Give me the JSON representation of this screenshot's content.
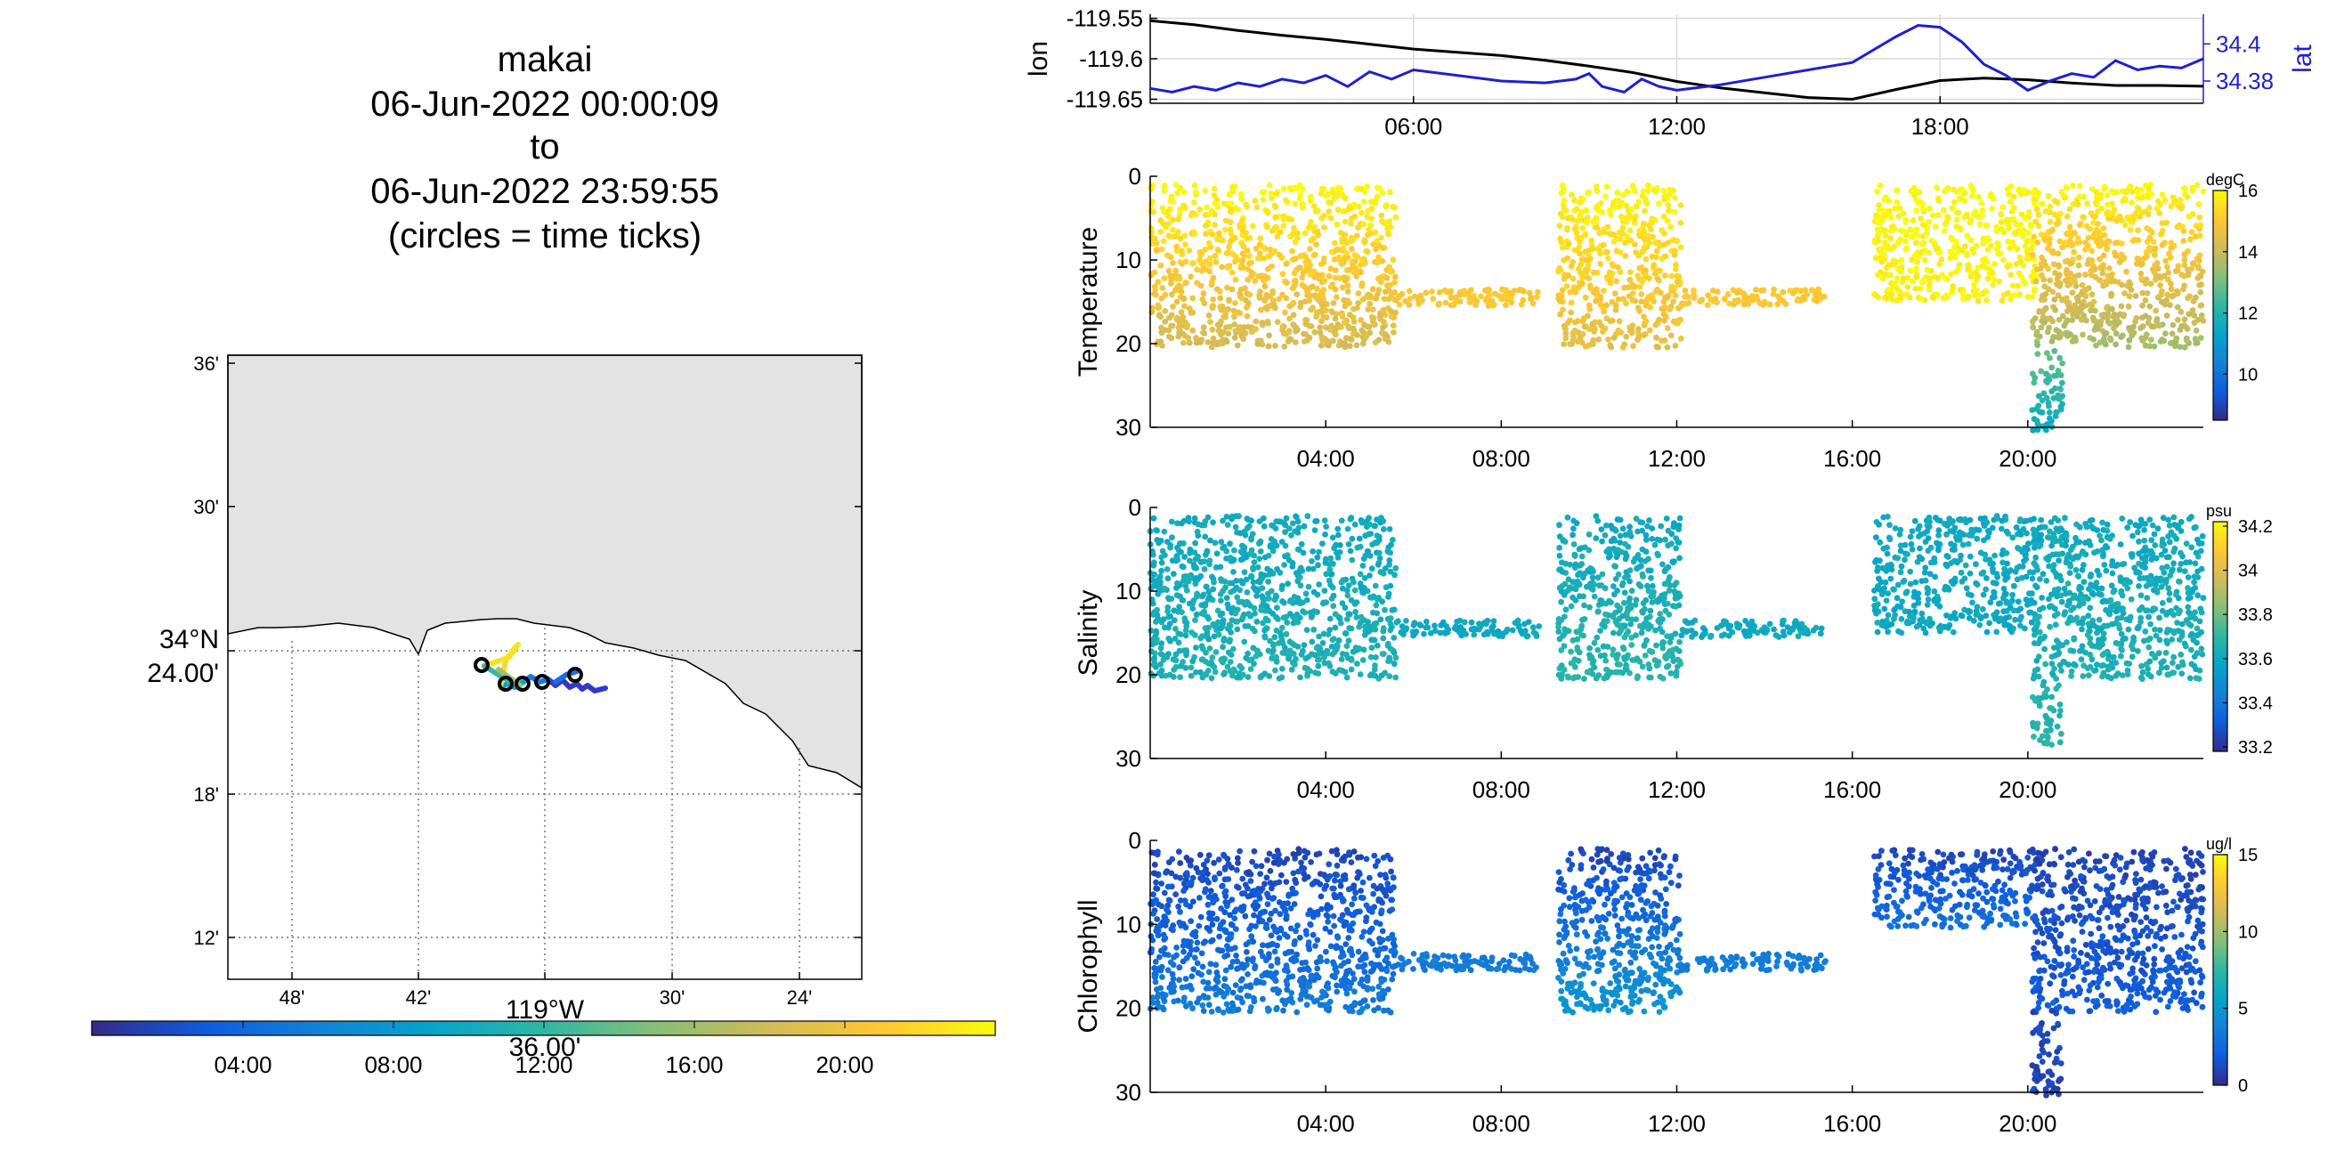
{
  "title": {
    "lines": [
      "makai",
      "06-Jun-2022 00:00:09",
      "to",
      "06-Jun-2022 23:59:55",
      "(circles = time ticks)"
    ]
  },
  "map": {
    "lat_ticks": [
      "36'",
      "30'",
      "34°N",
      "24.00'",
      "18'",
      "12'"
    ],
    "lon_ticks": [
      "48'",
      "42'",
      "119°W",
      "36.00'",
      "30'",
      "24'"
    ],
    "land_color": "#e3e3e3",
    "colorbar_ticks": [
      "04:00",
      "08:00",
      "12:00",
      "16:00",
      "20:00"
    ]
  },
  "colors": {
    "lon_line": "#000000",
    "lat_line": "#1f1fd1",
    "parula": [
      "#352a87",
      "#0f5cdd",
      "#1481d6",
      "#06a4ca",
      "#2eb7a4",
      "#87bf77",
      "#d1bb59",
      "#fec832",
      "#f9fb0e"
    ]
  },
  "chart_data": [
    {
      "type": "line",
      "xlim": [
        "00:00",
        "24:00"
      ],
      "x_ticks": [
        "06:00",
        "12:00",
        "18:00"
      ],
      "left_axis": {
        "label": "lon",
        "ylim": [
          -119.655,
          -119.545
        ],
        "ticks": [
          "-119.55",
          "-119.6",
          "-119.65"
        ]
      },
      "right_axis": {
        "label": "lat",
        "ylim": [
          34.368,
          34.416
        ],
        "ticks": [
          "34.4",
          "34.38"
        ]
      },
      "series": [
        {
          "axis": "left",
          "x_hours": [
            0,
            1,
            2,
            3,
            4,
            5,
            6,
            7,
            8,
            9,
            10,
            11,
            12,
            13,
            14,
            15,
            16,
            17,
            18,
            19,
            20,
            21,
            22,
            23,
            24
          ],
          "values": [
            -119.553,
            -119.558,
            -119.565,
            -119.571,
            -119.576,
            -119.582,
            -119.588,
            -119.592,
            -119.596,
            -119.602,
            -119.609,
            -119.617,
            -119.628,
            -119.636,
            -119.642,
            -119.648,
            -119.65,
            -119.638,
            -119.627,
            -119.624,
            -119.626,
            -119.63,
            -119.633,
            -119.633,
            -119.634
          ]
        },
        {
          "axis": "right",
          "x_hours": [
            0,
            0.5,
            1,
            1.5,
            2,
            2.5,
            3,
            3.5,
            4,
            4.5,
            5,
            5.5,
            6,
            7,
            8,
            9,
            9.7,
            10,
            10.3,
            10.8,
            11.2,
            11.6,
            12,
            13,
            14,
            15,
            16,
            16.5,
            17,
            17.5,
            18,
            18.5,
            19,
            19.5,
            20,
            20.5,
            21,
            21.5,
            22,
            22.5,
            23,
            23.5,
            24
          ],
          "values": [
            34.376,
            34.374,
            34.377,
            34.375,
            34.379,
            34.377,
            34.381,
            34.379,
            34.383,
            34.377,
            34.385,
            34.381,
            34.386,
            34.383,
            34.38,
            34.379,
            34.381,
            34.384,
            34.377,
            34.374,
            34.381,
            34.377,
            34.375,
            34.378,
            34.382,
            34.386,
            34.39,
            34.397,
            34.404,
            34.41,
            34.409,
            34.401,
            34.389,
            34.383,
            34.375,
            34.38,
            34.384,
            34.382,
            34.391,
            34.386,
            34.388,
            34.387,
            34.392
          ]
        }
      ]
    },
    {
      "type": "scatter",
      "ylabel": "Temperature",
      "ylim": [
        0,
        30
      ],
      "y_reversed": true,
      "y_ticks": [
        "0",
        "10",
        "20",
        "30"
      ],
      "x_ticks": [
        "04:00",
        "08:00",
        "12:00",
        "16:00",
        "20:00"
      ],
      "colorbar": {
        "unit": "degC",
        "range": [
          8.5,
          16
        ],
        "ticks": [
          "16",
          "14",
          "12",
          "10"
        ]
      },
      "segments": [
        {
          "t": [
            0,
            5.6
          ],
          "depth": [
            1,
            20.5
          ],
          "kind": "profile",
          "c_top": 16,
          "c_bottom": 14.2
        },
        {
          "t": [
            5.6,
            8.9
          ],
          "depth": [
            13.5,
            15.5
          ],
          "kind": "tow",
          "c": 15
        },
        {
          "t": [
            9.3,
            12.1
          ],
          "depth": [
            1,
            20.5
          ],
          "kind": "profile",
          "c_top": 16,
          "c_bottom": 14.5
        },
        {
          "t": [
            12.1,
            15.4
          ],
          "depth": [
            13.5,
            15.5
          ],
          "kind": "tow",
          "c": 15
        },
        {
          "t": [
            16.5,
            20.2
          ],
          "depth": [
            1,
            15
          ],
          "kind": "profile",
          "c_top": 16,
          "c_bottom": 15.8
        },
        {
          "t": [
            20.1,
            24
          ],
          "depth": [
            1,
            20.5
          ],
          "kind": "profile",
          "c_top": 16,
          "c_bottom": 13.5
        },
        {
          "t": [
            20.1,
            20.8
          ],
          "depth": [
            20,
            30.5
          ],
          "kind": "profile",
          "c_top": 13,
          "c_bottom": 11.5
        }
      ]
    },
    {
      "type": "scatter",
      "ylabel": "Salinity",
      "ylim": [
        0,
        30
      ],
      "y_reversed": true,
      "y_ticks": [
        "0",
        "10",
        "20",
        "30"
      ],
      "x_ticks": [
        "04:00",
        "08:00",
        "12:00",
        "16:00",
        "20:00"
      ],
      "colorbar": {
        "unit": "psu",
        "range": [
          33.18,
          34.22
        ],
        "ticks": [
          "34.2",
          "34",
          "33.8",
          "33.6",
          "33.4",
          "33.2"
        ]
      },
      "segments": [
        {
          "t": [
            0,
            5.6
          ],
          "depth": [
            1,
            20.5
          ],
          "kind": "profile",
          "c_top": 33.6,
          "c_bottom": 33.65
        },
        {
          "t": [
            5.6,
            8.9
          ],
          "depth": [
            13.5,
            15.5
          ],
          "kind": "tow",
          "c": 33.6
        },
        {
          "t": [
            9.3,
            12.1
          ],
          "depth": [
            1,
            20.5
          ],
          "kind": "profile",
          "c_top": 33.6,
          "c_bottom": 33.68
        },
        {
          "t": [
            12.1,
            15.4
          ],
          "depth": [
            13.5,
            15.5
          ],
          "kind": "tow",
          "c": 33.6
        },
        {
          "t": [
            16.5,
            20.2
          ],
          "depth": [
            1,
            15
          ],
          "kind": "profile",
          "c_top": 33.6,
          "c_bottom": 33.6
        },
        {
          "t": [
            20.1,
            24
          ],
          "depth": [
            1,
            20.5
          ],
          "kind": "profile",
          "c_top": 33.6,
          "c_bottom": 33.65
        },
        {
          "t": [
            20.1,
            20.8
          ],
          "depth": [
            20,
            28.5
          ],
          "kind": "profile",
          "c_top": 33.65,
          "c_bottom": 33.68
        }
      ]
    },
    {
      "type": "scatter",
      "ylabel": "Chlorophyll",
      "ylim": [
        0,
        30
      ],
      "y_reversed": true,
      "y_ticks": [
        "0",
        "10",
        "20",
        "30"
      ],
      "x_ticks": [
        "04:00",
        "08:00",
        "12:00",
        "16:00",
        "20:00"
      ],
      "colorbar": {
        "unit": "ug/l",
        "range": [
          0,
          15
        ],
        "ticks": [
          "15",
          "10",
          "5",
          "0"
        ]
      },
      "segments": [
        {
          "t": [
            0,
            5.6
          ],
          "depth": [
            1,
            20.5
          ],
          "kind": "profile",
          "c_top": 1,
          "c_bottom": 3.5
        },
        {
          "t": [
            5.6,
            8.9
          ],
          "depth": [
            13.5,
            15.5
          ],
          "kind": "tow",
          "c": 3.5
        },
        {
          "t": [
            9.3,
            12.1
          ],
          "depth": [
            1,
            20.5
          ],
          "kind": "profile",
          "c_top": 1,
          "c_bottom": 5
        },
        {
          "t": [
            12.1,
            15.4
          ],
          "depth": [
            13.5,
            15.5
          ],
          "kind": "tow",
          "c": 3.5
        },
        {
          "t": [
            16.5,
            20.2
          ],
          "depth": [
            1,
            10.5
          ],
          "kind": "profile",
          "c_top": 1,
          "c_bottom": 3
        },
        {
          "t": [
            20.1,
            24
          ],
          "depth": [
            1,
            20.5
          ],
          "kind": "profile",
          "c_top": 1,
          "c_bottom": 2
        },
        {
          "t": [
            20.1,
            20.8
          ],
          "depth": [
            20,
            30.5
          ],
          "kind": "profile",
          "c_top": 1,
          "c_bottom": 1
        }
      ]
    }
  ]
}
